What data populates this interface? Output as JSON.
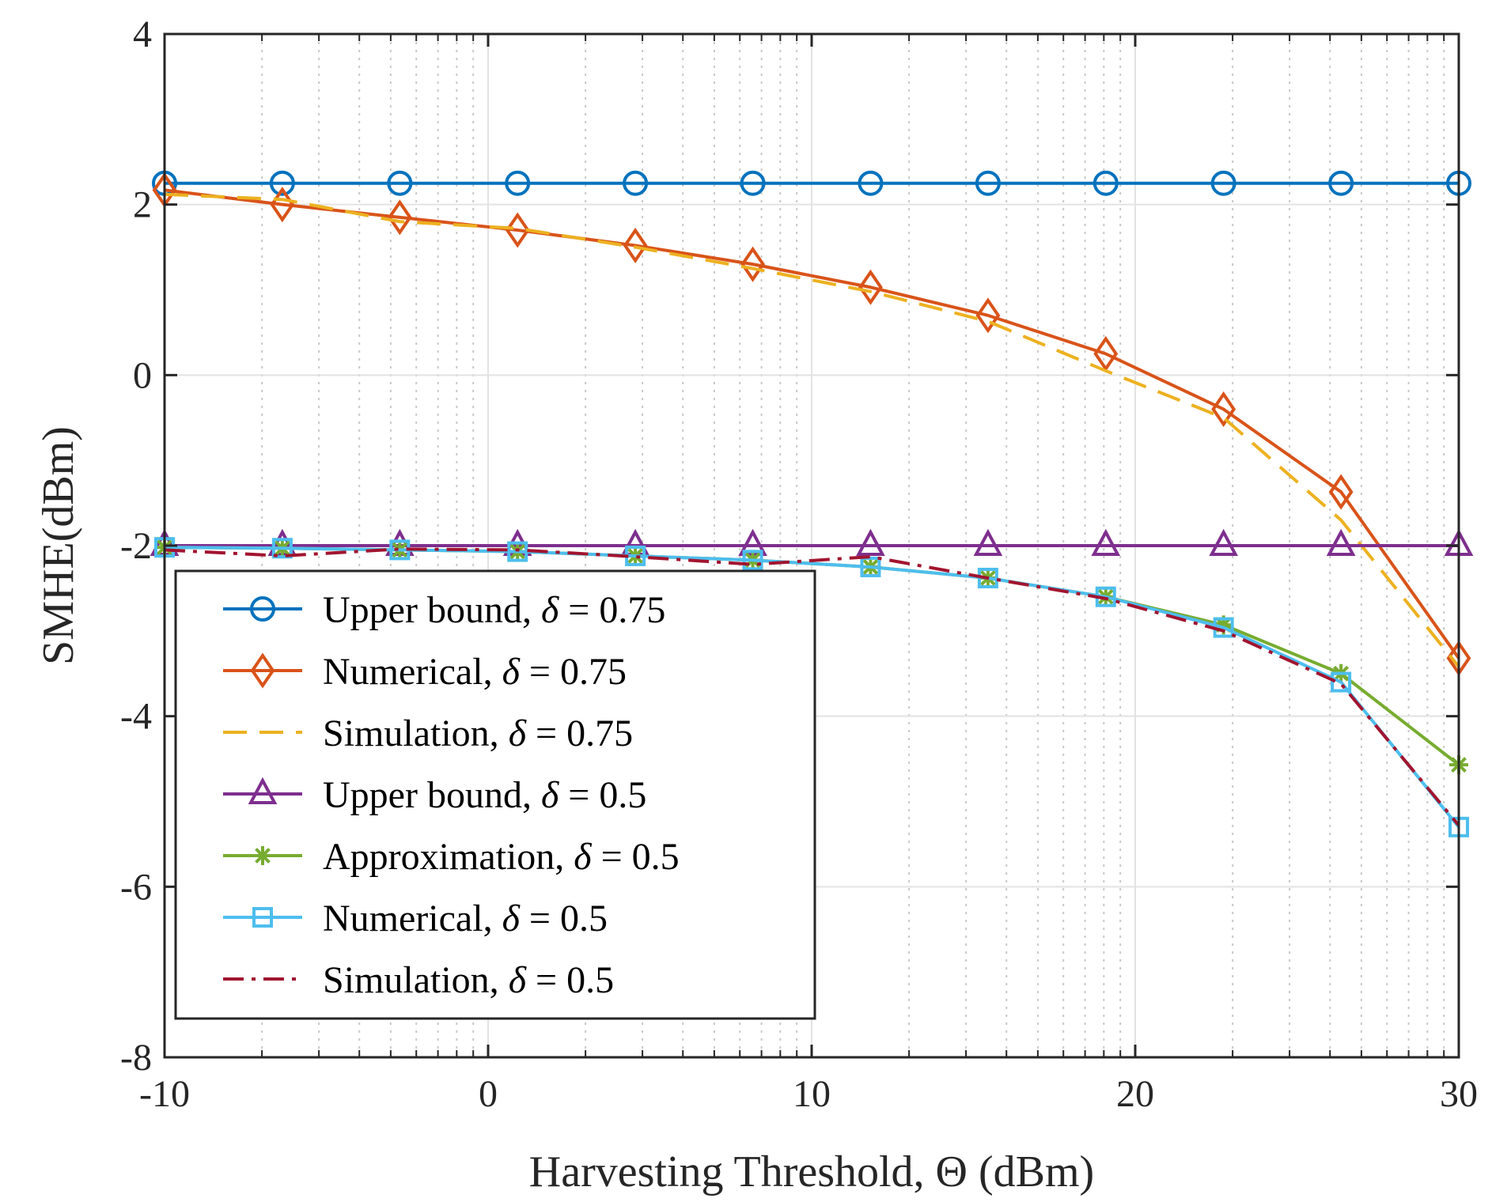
{
  "chart_data": {
    "type": "line",
    "xlabel": "Harvesting Threshold,  Θ (dBm)",
    "ylabel": "SMHE(dBm)",
    "xlim": [
      -10,
      30
    ],
    "ylim": [
      -8,
      4
    ],
    "xticks": [
      -10,
      0,
      10,
      20,
      30
    ],
    "xtick_labels": [
      "-10",
      "0",
      "10",
      "20",
      "30"
    ],
    "yticks": [
      -8,
      -6,
      -4,
      -2,
      0,
      2,
      4
    ],
    "ytick_labels": [
      "-8",
      "-6",
      "-4",
      "-2",
      "0",
      "2",
      "4"
    ],
    "x_minor_grid_dbm": [
      -6.99,
      -5.23,
      -3.98,
      -3.01,
      -2.22,
      -1.55,
      -0.97,
      -0.46,
      3.01,
      4.77,
      6.02,
      6.99,
      7.78,
      8.45,
      9.03,
      9.54,
      13.01,
      14.77,
      16.02,
      16.99,
      17.78,
      18.45,
      19.03,
      19.54,
      23.01,
      24.77,
      26.02,
      26.99,
      27.78,
      28.45,
      29.03,
      29.54
    ],
    "grid": true,
    "legend_position": "bottom-left",
    "x": [
      -10,
      -6.36,
      -2.73,
      0.91,
      4.55,
      8.18,
      11.82,
      15.45,
      19.09,
      22.73,
      26.36,
      30
    ],
    "series": [
      {
        "name": "Upper bound, δ = 0.75",
        "label_text": "Upper bound, ",
        "delta_value": "0.75",
        "color": "#0072bd",
        "style": "solid",
        "marker": "circle",
        "values": [
          2.25,
          2.25,
          2.25,
          2.25,
          2.25,
          2.25,
          2.25,
          2.25,
          2.25,
          2.25,
          2.25,
          2.25
        ]
      },
      {
        "name": "Numerical, δ = 0.75",
        "label_text": "Numerical, ",
        "delta_value": "0.75",
        "color": "#d95319",
        "style": "solid",
        "marker": "diamond",
        "values": [
          2.17,
          2.0,
          1.85,
          1.7,
          1.52,
          1.3,
          1.03,
          0.7,
          0.25,
          -0.4,
          -1.37,
          -3.32
        ]
      },
      {
        "name": "Simulation, δ = 0.75",
        "label_text": "Simulation, ",
        "delta_value": "0.75",
        "color": "#edb120",
        "style": "dashed",
        "marker": "none",
        "values": [
          2.12,
          2.06,
          1.8,
          1.72,
          1.5,
          1.25,
          0.98,
          0.63,
          0.05,
          -0.5,
          -1.7,
          -3.42
        ]
      },
      {
        "name": "Upper bound, δ = 0.5",
        "label_text": "Upper bound, ",
        "delta_value": "0.5",
        "color": "#7e2f8e",
        "style": "solid",
        "marker": "triangle",
        "values": [
          -2.0,
          -2.0,
          -2.0,
          -2.0,
          -2.0,
          -2.0,
          -2.0,
          -2.0,
          -2.0,
          -2.0,
          -2.0,
          -2.0
        ]
      },
      {
        "name": "Approximation, δ = 0.5",
        "label_text": "Approximation, ",
        "delta_value": "0.5",
        "color": "#77ac30",
        "style": "solid",
        "marker": "asterisk",
        "values": [
          -2.02,
          -2.03,
          -2.05,
          -2.07,
          -2.12,
          -2.17,
          -2.25,
          -2.38,
          -2.6,
          -2.93,
          -3.5,
          -4.57
        ]
      },
      {
        "name": "Numerical, δ = 0.5",
        "label_text": "Numerical, ",
        "delta_value": "0.5",
        "color": "#4dbeee",
        "style": "solid",
        "marker": "square",
        "values": [
          -2.02,
          -2.03,
          -2.05,
          -2.07,
          -2.12,
          -2.17,
          -2.25,
          -2.38,
          -2.6,
          -2.96,
          -3.6,
          -5.3
        ]
      },
      {
        "name": "Simulation, δ = 0.5",
        "label_text": "Simulation, ",
        "delta_value": "0.5",
        "color": "#a2142f",
        "style": "dashdot",
        "marker": "none",
        "values": [
          -2.05,
          -2.12,
          -2.04,
          -2.05,
          -2.13,
          -2.22,
          -2.13,
          -2.38,
          -2.62,
          -3.0,
          -3.62,
          -5.28
        ]
      }
    ]
  }
}
